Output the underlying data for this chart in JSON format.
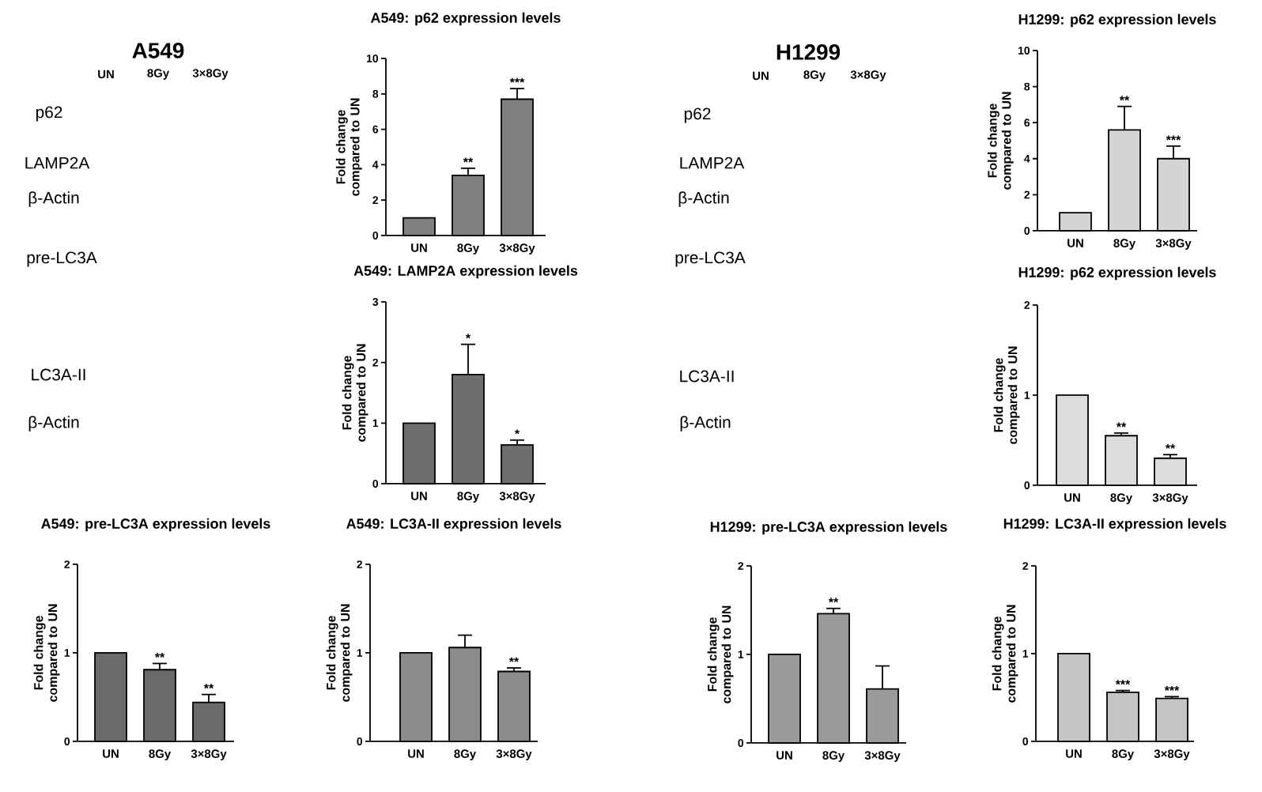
{
  "chart_data": [
    {
      "type": "other",
      "title": "A549",
      "categories": [
        "UN",
        "8Gy",
        "3×8Gy"
      ],
      "annotations": [
        "p62",
        "LAMP2A",
        "β-Actin",
        "pre-LC3A",
        "LC3A-II",
        "β-Actin"
      ]
    },
    {
      "type": "bar",
      "title": "A549: p62 expression levels",
      "ylabel": "Fold change compared to UN",
      "categories": [
        "UN",
        "8Gy",
        "3×8Gy"
      ],
      "values": [
        1,
        3.4,
        7.7
      ],
      "errors": [
        null,
        [
          3.4,
          3.8
        ],
        [
          7.7,
          8.3
        ]
      ],
      "color": "#7f7f7f",
      "ylim": [
        0,
        10
      ],
      "yticks": [
        0,
        2,
        4,
        6,
        8,
        10
      ],
      "annotations": [
        {
          "text": "**",
          "x": "8Gy",
          "y": 3.8
        },
        {
          "text": "***",
          "x": "3×8Gy",
          "y": 8.3
        }
      ]
    },
    {
      "type": "other",
      "title": "H1299",
      "categories": [
        "UN",
        "8Gy",
        "3×8Gy"
      ],
      "annotations": [
        "p62",
        "LAMP2A",
        "β-Actin",
        "pre-LC3A",
        "LC3A-II",
        "β-Actin"
      ]
    },
    {
      "type": "bar",
      "title": "H1299: p62 expression levels",
      "ylabel": "Fold change compared to UN",
      "categories": [
        "UN",
        "8Gy",
        "3×8Gy"
      ],
      "values": [
        1,
        5.6,
        4.0
      ],
      "errors": [
        null,
        [
          5.6,
          6.9
        ],
        [
          4.0,
          4.7
        ]
      ],
      "color": "#d4d4d4",
      "ylim": [
        0,
        10
      ],
      "yticks": [
        0,
        2,
        4,
        6,
        8,
        10
      ],
      "annotations": [
        {
          "text": "**",
          "x": "8Gy",
          "y": 6.9
        },
        {
          "text": "***",
          "x": "3×8Gy",
          "y": 4.7
        }
      ]
    },
    {
      "type": "bar",
      "title": "A549: LAMP2A expression levels",
      "ylabel": "Fold change compared to UN",
      "categories": [
        "UN",
        "8Gy",
        "3×8Gy"
      ],
      "values": [
        1,
        1.8,
        0.64
      ],
      "errors": [
        null,
        [
          1.8,
          2.3
        ],
        [
          0.64,
          0.72
        ]
      ],
      "color": "#6e6e6e",
      "ylim": [
        0,
        3
      ],
      "yticks": [
        0,
        1,
        2,
        3
      ],
      "annotations": [
        {
          "text": "*",
          "x": "8Gy",
          "y": 2.3
        },
        {
          "text": "*",
          "x": "3×8Gy",
          "y": 0.72
        }
      ]
    },
    {
      "type": "bar",
      "title": "H1299: p62 expression levels",
      "ylabel": "Fold change compared to UN",
      "categories": [
        "UN",
        "8Gy",
        "3×8Gy"
      ],
      "values": [
        1,
        0.55,
        0.3
      ],
      "errors": [
        null,
        [
          0.55,
          0.58
        ],
        [
          0.3,
          0.34
        ]
      ],
      "color": "#dcdcdc",
      "ylim": [
        0,
        2
      ],
      "yticks": [
        0,
        1,
        2
      ],
      "annotations": [
        {
          "text": "**",
          "x": "8Gy",
          "y": 0.58
        },
        {
          "text": "**",
          "x": "3×8Gy",
          "y": 0.34
        }
      ]
    },
    {
      "type": "bar",
      "title": "A549: pre-LC3A expression levels",
      "ylabel": "Fold change compared to UN",
      "categories": [
        "UN",
        "8Gy",
        "3×8Gy"
      ],
      "values": [
        1,
        0.81,
        0.44
      ],
      "errors": [
        null,
        [
          0.81,
          0.88
        ],
        [
          0.44,
          0.53
        ]
      ],
      "color": "#6a6a6a",
      "ylim": [
        0,
        2
      ],
      "yticks": [
        0,
        1,
        2
      ],
      "annotations": [
        {
          "text": "**",
          "x": "8Gy",
          "y": 0.88
        },
        {
          "text": "**",
          "x": "3×8Gy",
          "y": 0.53
        }
      ]
    },
    {
      "type": "bar",
      "title": "A549: LC3A-II expression levels",
      "ylabel": "Fold change compared to UN",
      "categories": [
        "UN",
        "8Gy",
        "3×8Gy"
      ],
      "values": [
        1,
        1.06,
        0.79
      ],
      "errors": [
        null,
        [
          1.06,
          1.2
        ],
        [
          0.79,
          0.83
        ]
      ],
      "color": "#8c8c8c",
      "ylim": [
        0,
        2
      ],
      "yticks": [
        0,
        1,
        2
      ],
      "annotations": [
        {
          "text": "**",
          "x": "3×8Gy",
          "y": 0.83
        }
      ]
    },
    {
      "type": "bar",
      "title": "H1299: pre-LC3A expression levels",
      "ylabel": "Fold change compared to UN",
      "categories": [
        "UN",
        "8Gy",
        "3×8Gy"
      ],
      "values": [
        1,
        1.46,
        0.61
      ],
      "errors": [
        null,
        [
          1.46,
          1.52
        ],
        [
          0.61,
          0.87
        ]
      ],
      "color": "#9a9a9a",
      "ylim": [
        0,
        2
      ],
      "yticks": [
        0,
        1,
        2
      ],
      "annotations": [
        {
          "text": "**",
          "x": "8Gy",
          "y": 1.52
        }
      ]
    },
    {
      "type": "bar",
      "title": "H1299: LC3A-II expression levels",
      "ylabel": "Fold change compared to UN",
      "categories": [
        "UN",
        "8Gy",
        "3×8Gy"
      ],
      "values": [
        1,
        0.56,
        0.49
      ],
      "errors": [
        null,
        [
          0.56,
          0.58
        ],
        [
          0.49,
          0.51
        ]
      ],
      "color": "#c4c4c4",
      "ylim": [
        0,
        2
      ],
      "yticks": [
        0,
        1,
        2
      ],
      "annotations": [
        {
          "text": "***",
          "x": "8Gy",
          "y": 0.58
        },
        {
          "text": "***",
          "x": "3×8Gy",
          "y": 0.51
        }
      ]
    }
  ]
}
